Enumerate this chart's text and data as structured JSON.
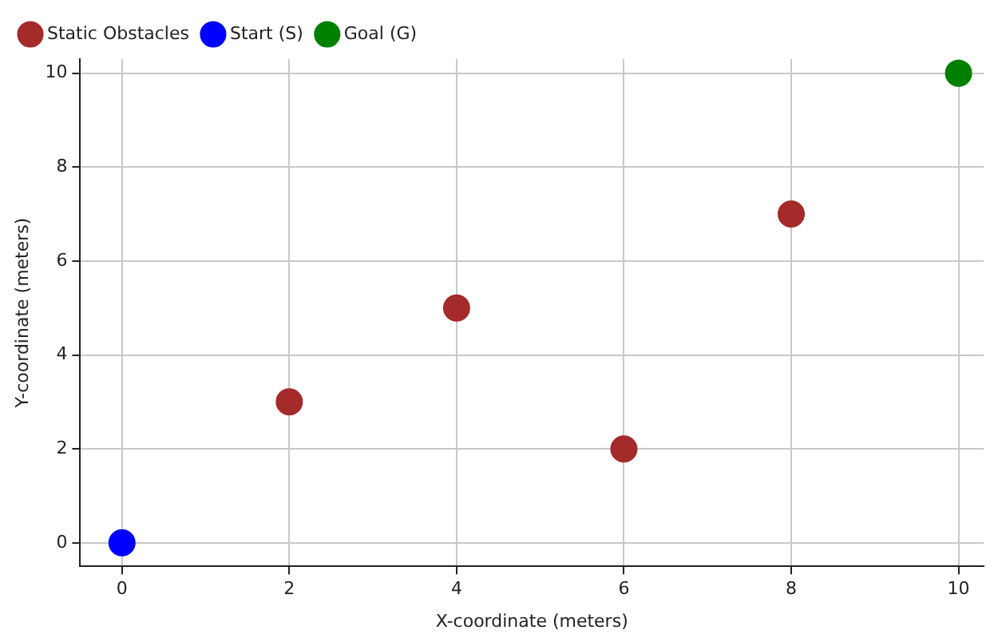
{
  "chart_data": {
    "type": "scatter",
    "xlabel": "X-coordinate (meters)",
    "ylabel": "Y-coordinate (meters)",
    "xlim": [
      -0.5,
      10.3
    ],
    "ylim": [
      -0.5,
      10.3
    ],
    "xticks": [
      0,
      2,
      4,
      6,
      8,
      10
    ],
    "yticks": [
      0,
      2,
      4,
      6,
      8,
      10
    ],
    "grid": true,
    "legend": "top left",
    "marker": "circle",
    "series": [
      {
        "name": "Static Obstacles",
        "color": "#a52a2a",
        "x": [
          2,
          4,
          6,
          8
        ],
        "values": [
          3,
          5,
          2,
          7
        ]
      },
      {
        "name": "Start (S)",
        "color": "#0000ff",
        "x": [
          0
        ],
        "values": [
          0
        ]
      },
      {
        "name": "Goal (G)",
        "color": "#008000",
        "x": [
          10
        ],
        "values": [
          10
        ]
      }
    ]
  }
}
